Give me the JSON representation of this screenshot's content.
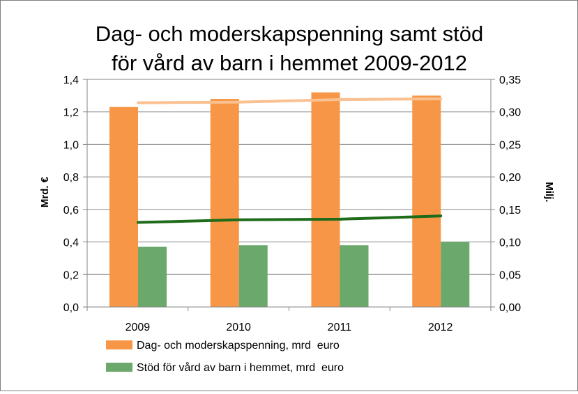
{
  "chart_data": {
    "type": "bar",
    "title_line1": "Dag- och moderskapspenning samt stöd",
    "title_line2": "för vård av barn i hemmet 2009-2012",
    "categories": [
      "2009",
      "2010",
      "2011",
      "2012"
    ],
    "left_axis": {
      "label": "Mrd. €",
      "ylim": [
        0,
        1.4
      ],
      "ticks": [
        "0,0",
        "0,2",
        "0,4",
        "0,6",
        "0,8",
        "1,0",
        "1,2",
        "1,4"
      ]
    },
    "right_axis": {
      "label": "Milj.",
      "ylim": [
        0,
        0.35
      ],
      "ticks": [
        "0,00",
        "0,05",
        "0,10",
        "0,15",
        "0,20",
        "0,25",
        "0,30",
        "0,35"
      ]
    },
    "series": [
      {
        "name": "Dag- och moderskapspenning, mrd  euro",
        "kind": "bar",
        "axis": "left",
        "color": "#f79646",
        "values": [
          1.23,
          1.28,
          1.32,
          1.3
        ]
      },
      {
        "name": "Stöd för vård av barn i hemmet, mrd  euro",
        "kind": "bar",
        "axis": "left",
        "color": "#6aa86b",
        "values": [
          0.37,
          0.38,
          0.38,
          0.4
        ]
      },
      {
        "kind": "line",
        "axis": "right",
        "color": "#fac090",
        "values": [
          0.314,
          0.315,
          0.319,
          0.32
        ]
      },
      {
        "kind": "line",
        "axis": "right",
        "color": "#1e6b1a",
        "values": [
          0.13,
          0.134,
          0.135,
          0.14
        ]
      }
    ],
    "grid": true,
    "legend": "bottom"
  }
}
